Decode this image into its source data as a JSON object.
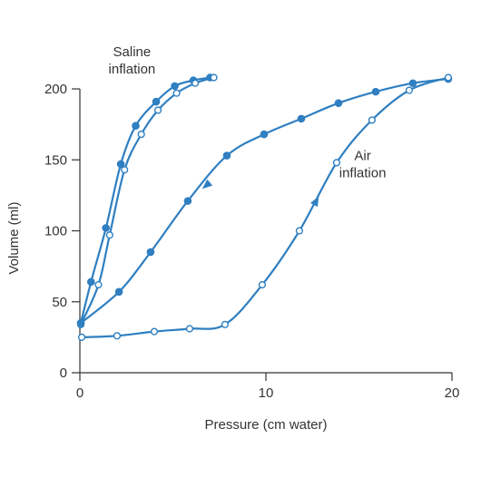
{
  "chart_data": {
    "type": "line",
    "xlabel": "Pressure (cm water)",
    "ylabel": "Volume (ml)",
    "xlim": [
      0,
      20
    ],
    "ylim": [
      0,
      200
    ],
    "x_ticks": [
      "0",
      "10",
      "20"
    ],
    "y_ticks": [
      "0",
      "50",
      "100",
      "150",
      "200"
    ],
    "grid": false,
    "colors": {
      "line": "#2f7fc1",
      "axis": "#333333"
    },
    "annotations": [
      {
        "lines": [
          "Saline",
          "inflation"
        ],
        "x": 2.8,
        "y": 223
      },
      {
        "lines": [
          "Air",
          "inflation"
        ],
        "x": 15.2,
        "y": 150
      }
    ],
    "series": [
      {
        "marker": "filled",
        "points": [
          [
            0.05,
            35
          ],
          [
            0.6,
            64
          ],
          [
            1.4,
            102
          ],
          [
            2.2,
            147
          ],
          [
            3.0,
            174
          ],
          [
            4.1,
            191
          ],
          [
            5.1,
            202
          ],
          [
            6.1,
            206
          ],
          [
            7.0,
            208
          ]
        ],
        "arrows": []
      },
      {
        "marker": "open",
        "points": [
          [
            0.05,
            34
          ],
          [
            1.0,
            62
          ],
          [
            1.6,
            97
          ],
          [
            2.4,
            143
          ],
          [
            3.3,
            168
          ],
          [
            4.2,
            185
          ],
          [
            5.2,
            197
          ],
          [
            6.2,
            204
          ],
          [
            7.2,
            208
          ]
        ],
        "arrows": []
      },
      {
        "marker": "filled",
        "points": [
          [
            0.05,
            35
          ],
          [
            2.1,
            57
          ],
          [
            3.8,
            85
          ],
          [
            5.8,
            121
          ],
          [
            7.9,
            153
          ],
          [
            9.9,
            168
          ],
          [
            11.9,
            179
          ],
          [
            13.9,
            190
          ],
          [
            15.9,
            198
          ],
          [
            17.9,
            204
          ],
          [
            19.8,
            207
          ]
        ],
        "arrows": [
          {
            "x": 6.8,
            "y": 132,
            "toward_x": 5.8,
            "toward_y": 121
          }
        ]
      },
      {
        "marker": "open",
        "points": [
          [
            0.1,
            25
          ],
          [
            2.0,
            26
          ],
          [
            4.0,
            29
          ],
          [
            5.9,
            31
          ],
          [
            7.8,
            34
          ],
          [
            9.8,
            62
          ],
          [
            11.8,
            100
          ],
          [
            13.8,
            148
          ],
          [
            15.7,
            178
          ],
          [
            17.7,
            199
          ],
          [
            19.8,
            208
          ]
        ],
        "arrows": [
          {
            "x": 12.7,
            "y": 121,
            "toward_x": 13.8,
            "toward_y": 148
          }
        ]
      }
    ]
  }
}
